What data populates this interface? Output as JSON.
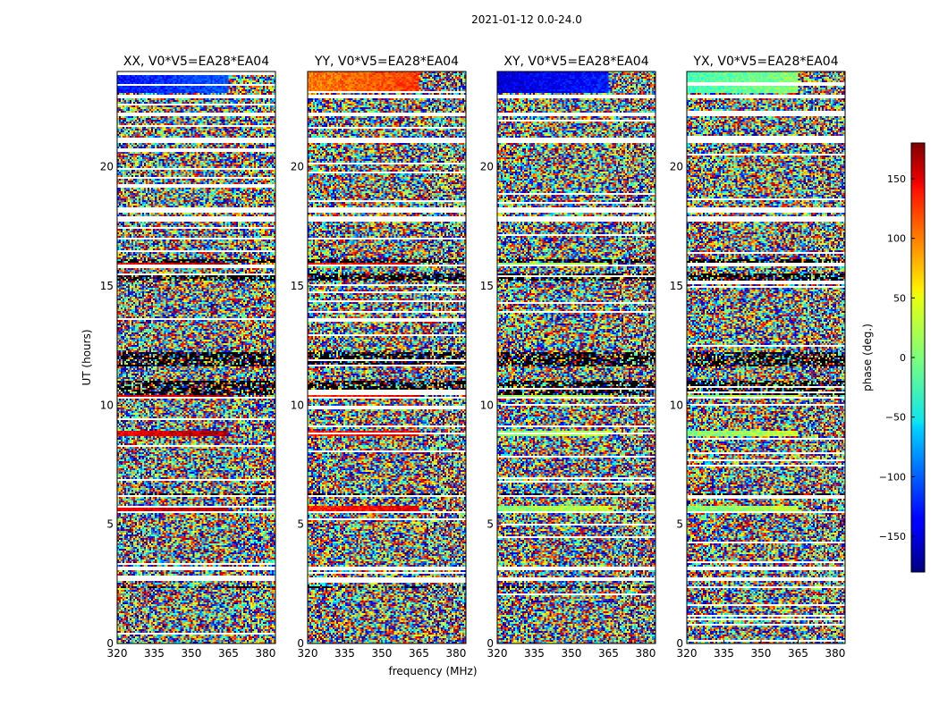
{
  "chart_data": {
    "type": "heatmap",
    "suptitle": "2021-01-12 0.0-24.0",
    "xlabel": "frequency (MHz)",
    "ylabel": "UT (hours)",
    "xlim": [
      320,
      384
    ],
    "ylim": [
      0,
      24
    ],
    "xticks": [
      "320",
      "335",
      "350",
      "365",
      "380"
    ],
    "xtick_values": [
      320,
      335,
      350,
      365,
      380
    ],
    "yticks": [
      "0",
      "5",
      "10",
      "15",
      "20"
    ],
    "ytick_values": [
      0,
      5,
      10,
      15,
      20
    ],
    "panels": [
      {
        "title": "XX, V0*V5=EA28*EA04",
        "top_phase": -130,
        "band_phase": 140
      },
      {
        "title": "YY, V0*V5=EA28*EA04",
        "top_phase": 90,
        "band_phase": 120
      },
      {
        "title": "XY, V0*V5=EA28*EA04",
        "top_phase": -150,
        "band_phase": 0
      },
      {
        "title": "YX, V0*V5=EA28*EA04",
        "top_phase": -20,
        "band_phase": 0
      }
    ],
    "colorbar": {
      "label": "phase (deg.)",
      "range": [
        -180,
        180
      ],
      "ticks": [
        "150",
        "100",
        "50",
        "0",
        "−50",
        "−100",
        "−150"
      ],
      "tick_values": [
        150,
        100,
        50,
        0,
        -50,
        -100,
        -150
      ],
      "colormap": "jet"
    },
    "gap_hours": [
      [
        22.9,
        23.05
      ],
      [
        22.1,
        22.3
      ],
      [
        21.0,
        21.25
      ],
      [
        18.05,
        18.3
      ],
      [
        17.7,
        17.9
      ],
      [
        15.8,
        15.9
      ],
      [
        3.05,
        3.25
      ],
      [
        2.6,
        2.8
      ],
      [
        5.5,
        5.55
      ],
      [
        6.15,
        6.2
      ],
      [
        10.3,
        10.35
      ]
    ],
    "dark_rows_hours": [
      [
        11.6,
        12.2
      ],
      [
        10.4,
        11.0
      ],
      [
        15.2,
        15.5
      ],
      [
        6.2,
        6.3
      ],
      [
        16.0,
        16.1
      ],
      [
        2.3,
        2.4
      ]
    ],
    "coherent_bands": [
      [
        23.1,
        24.0
      ],
      [
        15.8,
        15.95
      ],
      [
        10.25,
        10.45
      ],
      [
        8.7,
        8.9
      ],
      [
        5.55,
        5.75
      ]
    ]
  }
}
